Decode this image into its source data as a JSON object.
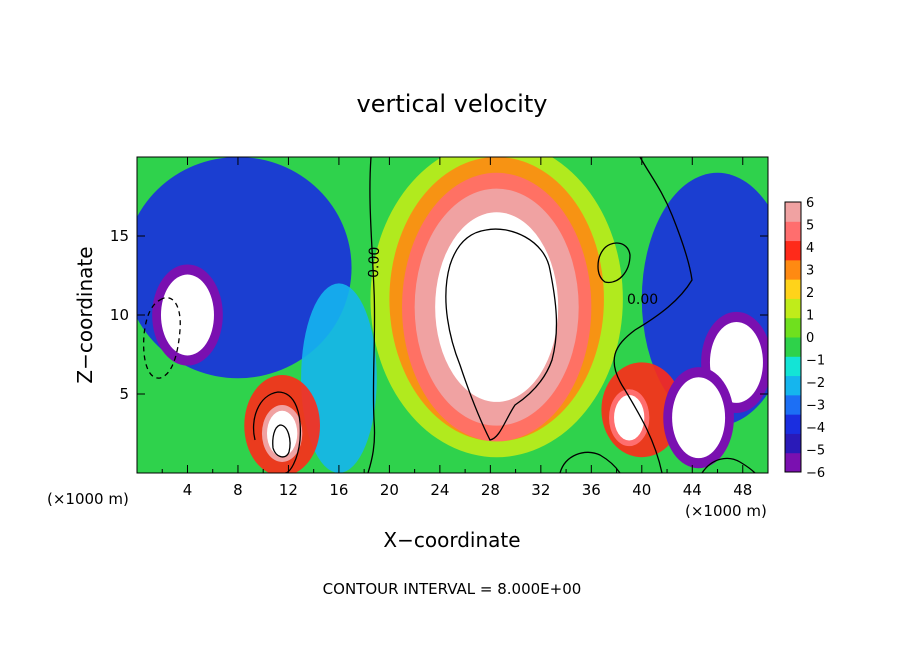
{
  "chart_data": {
    "type": "heatmap",
    "title": "vertical velocity",
    "xlabel": "X−coordinate",
    "ylabel": "Z−coordinate",
    "x_unit_left": "(×1000 m)",
    "x_unit_right": "(×1000 m)",
    "footer": "CONTOUR INTERVAL = 8.000E+00",
    "xlim": [
      0,
      50
    ],
    "ylim": [
      0,
      20
    ],
    "x_ticks": [
      4,
      8,
      12,
      16,
      20,
      24,
      28,
      32,
      36,
      40,
      44,
      48
    ],
    "x_tick_labels": [
      "4",
      "8",
      "12",
      "16",
      "20",
      "24",
      "28",
      "32",
      "36",
      "40",
      "44",
      "48"
    ],
    "y_ticks": [
      5,
      10,
      15
    ],
    "y_tick_labels": [
      "5",
      "10",
      "15"
    ],
    "colorbar": {
      "min": -6,
      "max": 6,
      "tick_values": [
        6,
        5,
        4,
        3,
        2,
        1,
        0,
        -1,
        -2,
        -3,
        -4,
        -5,
        -6
      ],
      "tick_labels": [
        "6",
        "5",
        "4",
        "3",
        "2",
        "1",
        "0",
        "−1",
        "−2",
        "−3",
        "−4",
        "−5",
        "−6"
      ],
      "colors": [
        "#7a10b0",
        "#2a1ab8",
        "#1a2ee0",
        "#1c6ff5",
        "#15b5ee",
        "#13e4d6",
        "#2ed24a",
        "#6fe01e",
        "#c0ec1a",
        "#ffd31a",
        "#ff8a12",
        "#ff2a1a",
        "#ff6e6e",
        "#f0a2a2"
      ]
    },
    "contour_labels": [
      "0.00",
      "0.00"
    ],
    "features": [
      {
        "kind": "updraft",
        "x": 28.5,
        "z": 10.5,
        "w_max": 6
      },
      {
        "kind": "updraft",
        "x": 11.5,
        "z": 2.5,
        "w_max": 6
      },
      {
        "kind": "updraft",
        "x": 39,
        "z": 3.5,
        "w_max": 5
      },
      {
        "kind": "downdraft",
        "x": 4,
        "z": 10,
        "w_min": -6
      },
      {
        "kind": "downdraft",
        "x": 47.5,
        "z": 7,
        "w_min": -6
      },
      {
        "kind": "downdraft",
        "x": 44.5,
        "z": 3.5,
        "w_min": -6
      }
    ]
  }
}
